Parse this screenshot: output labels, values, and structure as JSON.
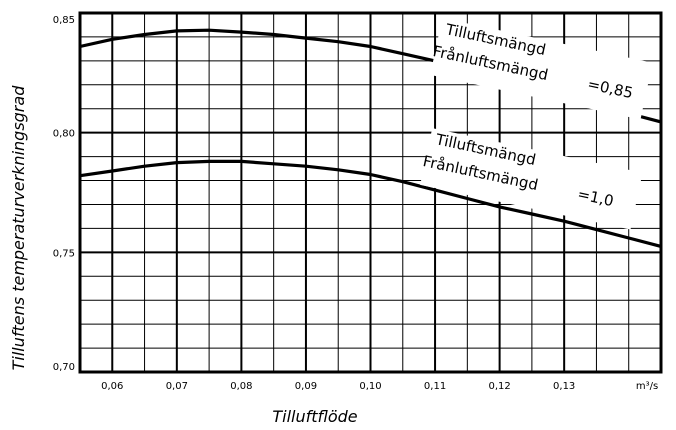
{
  "chart_data": {
    "type": "line",
    "xlabel": "Tilluftflöde",
    "ylabel": "Tilluftens temperaturverkningsgrad",
    "x_unit": "m³/s",
    "xlim": [
      0.055,
      0.145
    ],
    "ylim": [
      0.7,
      0.85
    ],
    "x_ticks": [
      0.06,
      0.07,
      0.08,
      0.09,
      0.1,
      0.11,
      0.12,
      0.13
    ],
    "x_tick_labels": [
      "0,06",
      "0,07",
      "0,08",
      "0,09",
      "0,10",
      "0,11",
      "0,12",
      "0,13"
    ],
    "y_ticks": [
      0.7,
      0.75,
      0.8,
      0.85
    ],
    "y_tick_labels": [
      "0,70",
      "0,75",
      "0,80",
      "0,85"
    ],
    "grid": true,
    "series": [
      {
        "x": [
          0.055,
          0.06,
          0.065,
          0.07,
          0.075,
          0.08,
          0.085,
          0.09,
          0.095,
          0.1,
          0.105,
          0.11,
          0.115,
          0.12,
          0.125,
          0.13,
          0.135,
          0.14,
          0.145
        ],
        "y": [
          0.836,
          0.839,
          0.841,
          0.8425,
          0.8428,
          0.842,
          0.841,
          0.8395,
          0.838,
          0.836,
          0.833,
          0.83,
          0.826,
          0.822,
          0.8185,
          0.815,
          0.8115,
          0.808,
          0.8045
        ]
      },
      {
        "x": [
          0.055,
          0.06,
          0.065,
          0.07,
          0.075,
          0.08,
          0.085,
          0.09,
          0.095,
          0.1,
          0.105,
          0.11,
          0.115,
          0.12,
          0.125,
          0.13,
          0.135,
          0.14,
          0.145
        ],
        "y": [
          0.782,
          0.784,
          0.786,
          0.7875,
          0.788,
          0.788,
          0.787,
          0.786,
          0.7845,
          0.7825,
          0.7795,
          0.776,
          0.7725,
          0.769,
          0.766,
          0.763,
          0.7595,
          0.756,
          0.7525
        ]
      }
    ],
    "annotations": [
      {
        "line1": "Tilluftsmängd",
        "line2": "Frånluftsmängd",
        "value": "=0,85"
      },
      {
        "line1": "Tilluftsmängd",
        "line2": "Frånluftsmängd",
        "value": "=1,0"
      }
    ]
  }
}
